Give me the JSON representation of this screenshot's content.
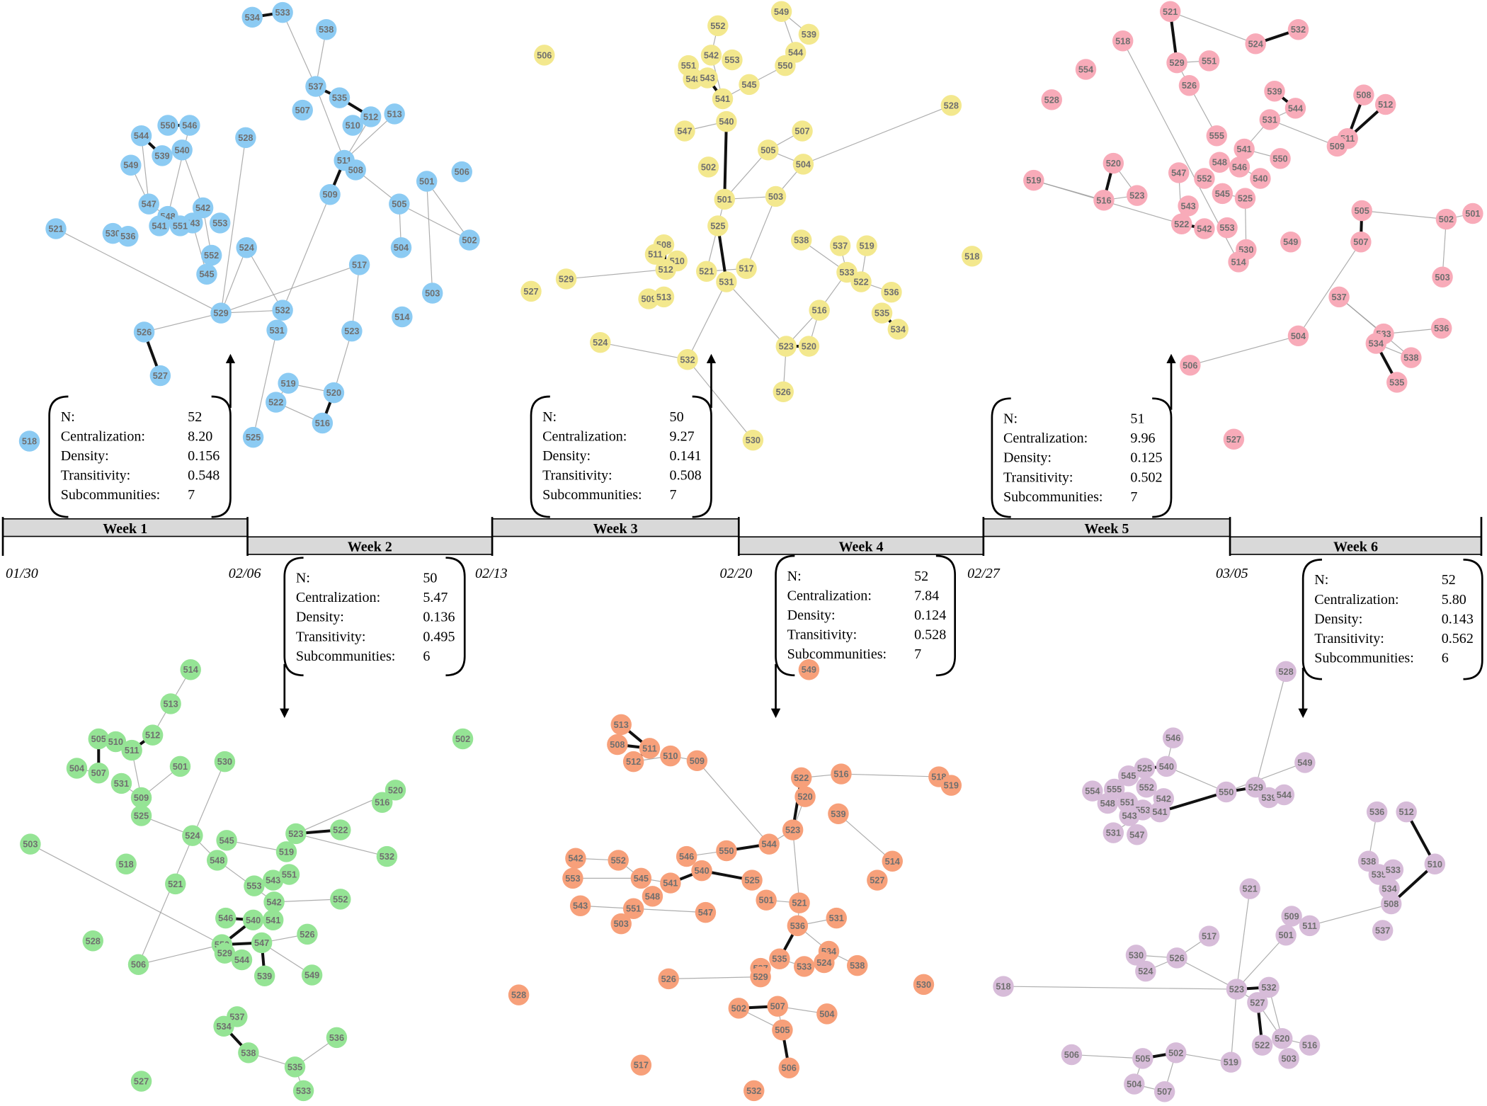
{
  "timeline": {
    "weeks": [
      {
        "label": "Week 1",
        "start": "01/30"
      },
      {
        "label": "Week 2",
        "start": "02/06"
      },
      {
        "label": "Week 3",
        "start": "02/13"
      },
      {
        "label": "Week 4",
        "start": "02/20"
      },
      {
        "label": "Week 5",
        "start": "02/27"
      },
      {
        "label": "Week 6",
        "start": "03/05"
      }
    ]
  },
  "networks": [
    {
      "stats": [
        [
          "N:",
          "52"
        ],
        [
          "Centralization:",
          "8.20"
        ],
        [
          "Density:",
          "0.156"
        ],
        [
          "Transitivity:",
          "0.548"
        ],
        [
          "Subcommunities:",
          "7"
        ]
      ],
      "nodes": [
        "534",
        "533",
        "538",
        "537",
        "535",
        "507",
        "512",
        "513",
        "510",
        "511",
        "508",
        "509",
        "501",
        "506",
        "505",
        "504",
        "502",
        "503",
        "514",
        "528",
        "550",
        "546",
        "544",
        "539",
        "540",
        "549",
        "547",
        "548",
        "542",
        "541",
        "543",
        "551",
        "553",
        "552",
        "545",
        "521",
        "530",
        "536",
        "524",
        "517",
        "529",
        "532",
        "531",
        "523",
        "526",
        "527",
        "519",
        "520",
        "522",
        "516",
        "525",
        "518"
      ]
    },
    {
      "stats": [
        [
          "N:",
          "50"
        ],
        [
          "Centralization:",
          "5.47"
        ],
        [
          "Density:",
          "0.136"
        ],
        [
          "Transitivity:",
          "0.495"
        ],
        [
          "Subcommunities:",
          "6"
        ]
      ],
      "nodes": [
        "514",
        "513",
        "505",
        "510",
        "512",
        "511",
        "501",
        "504",
        "507",
        "531",
        "509",
        "530",
        "502",
        "520",
        "516",
        "525",
        "523",
        "522",
        "524",
        "545",
        "519",
        "532",
        "503",
        "518",
        "548",
        "553",
        "543",
        "551",
        "521",
        "542",
        "552",
        "546",
        "540",
        "541",
        "526",
        "528",
        "550",
        "547",
        "529",
        "544",
        "506",
        "539",
        "549",
        "537",
        "534",
        "536",
        "538",
        "535",
        "533",
        "527"
      ]
    },
    {
      "stats": [
        [
          "N:",
          "50"
        ],
        [
          "Centralization:",
          "9.27"
        ],
        [
          "Density:",
          "0.141"
        ],
        [
          "Transitivity:",
          "0.508"
        ],
        [
          "Subcommunities:",
          "7"
        ]
      ],
      "nodes": [
        "506",
        "549",
        "552",
        "539",
        "542",
        "544",
        "551",
        "553",
        "550",
        "548",
        "543",
        "545",
        "541",
        "540",
        "547",
        "528",
        "507",
        "505",
        "504",
        "502",
        "501",
        "503",
        "525",
        "538",
        "537",
        "519",
        "518",
        "508",
        "511",
        "510",
        "512",
        "521",
        "517",
        "531",
        "533",
        "522",
        "536",
        "529",
        "527",
        "509",
        "513",
        "535",
        "516",
        "534",
        "524",
        "523",
        "520",
        "532",
        "526",
        "530"
      ]
    },
    {
      "stats": [
        [
          "N:",
          "52"
        ],
        [
          "Centralization:",
          "7.84"
        ],
        [
          "Density:",
          "0.124"
        ],
        [
          "Transitivity:",
          "0.528"
        ],
        [
          "Subcommunities:",
          "7"
        ]
      ],
      "nodes": [
        "549",
        "513",
        "508",
        "511",
        "512",
        "510",
        "509",
        "518",
        "519",
        "522",
        "516",
        "520",
        "539",
        "523",
        "544",
        "550",
        "546",
        "542",
        "552",
        "540",
        "514",
        "553",
        "545",
        "541",
        "525",
        "548",
        "527",
        "501",
        "521",
        "543",
        "551",
        "547",
        "503",
        "531",
        "536",
        "534",
        "535",
        "524",
        "533",
        "538",
        "537",
        "529",
        "526",
        "530",
        "528",
        "502",
        "507",
        "504",
        "505",
        "506",
        "517",
        "532"
      ]
    },
    {
      "stats": [
        [
          "N:",
          "51"
        ],
        [
          "Centralization:",
          "9.96"
        ],
        [
          "Density:",
          "0.125"
        ],
        [
          "Transitivity:",
          "0.502"
        ],
        [
          "Subcommunities:",
          "7"
        ]
      ],
      "nodes": [
        "521",
        "532",
        "518",
        "524",
        "529",
        "551",
        "554",
        "526",
        "528",
        "539",
        "508",
        "512",
        "544",
        "531",
        "555",
        "511",
        "509",
        "541",
        "550",
        "520",
        "548",
        "546",
        "547",
        "519",
        "552",
        "540",
        "516",
        "523",
        "545",
        "525",
        "543",
        "522",
        "542",
        "553",
        "549",
        "530",
        "514",
        "505",
        "502",
        "501",
        "507",
        "503",
        "537",
        "536",
        "504",
        "533",
        "534",
        "538",
        "535",
        "506",
        "527"
      ]
    },
    {
      "stats": [
        [
          "N:",
          "52"
        ],
        [
          "Centralization:",
          "5.80"
        ],
        [
          "Density:",
          "0.143"
        ],
        [
          "Transitivity:",
          "0.562"
        ],
        [
          "Subcommunities:",
          "6"
        ]
      ],
      "nodes": [
        "528",
        "546",
        "525",
        "540",
        "549",
        "545",
        "552",
        "555",
        "554",
        "542",
        "550",
        "529",
        "539",
        "544",
        "551",
        "548",
        "553",
        "541",
        "543",
        "547",
        "531",
        "536",
        "512",
        "538",
        "535",
        "533",
        "510",
        "534",
        "521",
        "508",
        "509",
        "511",
        "517",
        "501",
        "537",
        "530",
        "526",
        "524",
        "518",
        "523",
        "532",
        "527",
        "520",
        "522",
        "516",
        "503",
        "502",
        "506",
        "505",
        "519",
        "504",
        "507"
      ]
    }
  ]
}
